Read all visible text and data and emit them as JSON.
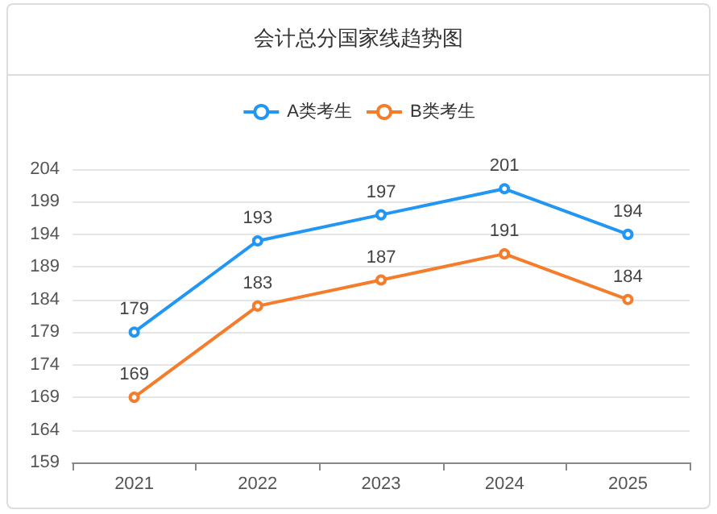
{
  "chart_data": {
    "type": "line",
    "title": "会计总分国家线趋势图",
    "categories": [
      "2021",
      "2022",
      "2023",
      "2024",
      "2025"
    ],
    "series": [
      {
        "name": "A类考生",
        "color": "#2196f3",
        "values": [
          179,
          193,
          197,
          201,
          194
        ]
      },
      {
        "name": "B类考生",
        "color": "#f57c2a",
        "values": [
          169,
          183,
          187,
          191,
          184
        ]
      }
    ],
    "ylim": [
      159,
      204
    ],
    "yticks": [
      159,
      164,
      169,
      174,
      179,
      184,
      189,
      194,
      199,
      204
    ],
    "grid": "y",
    "legend": "top",
    "marker": "circle",
    "data_labels": true
  }
}
